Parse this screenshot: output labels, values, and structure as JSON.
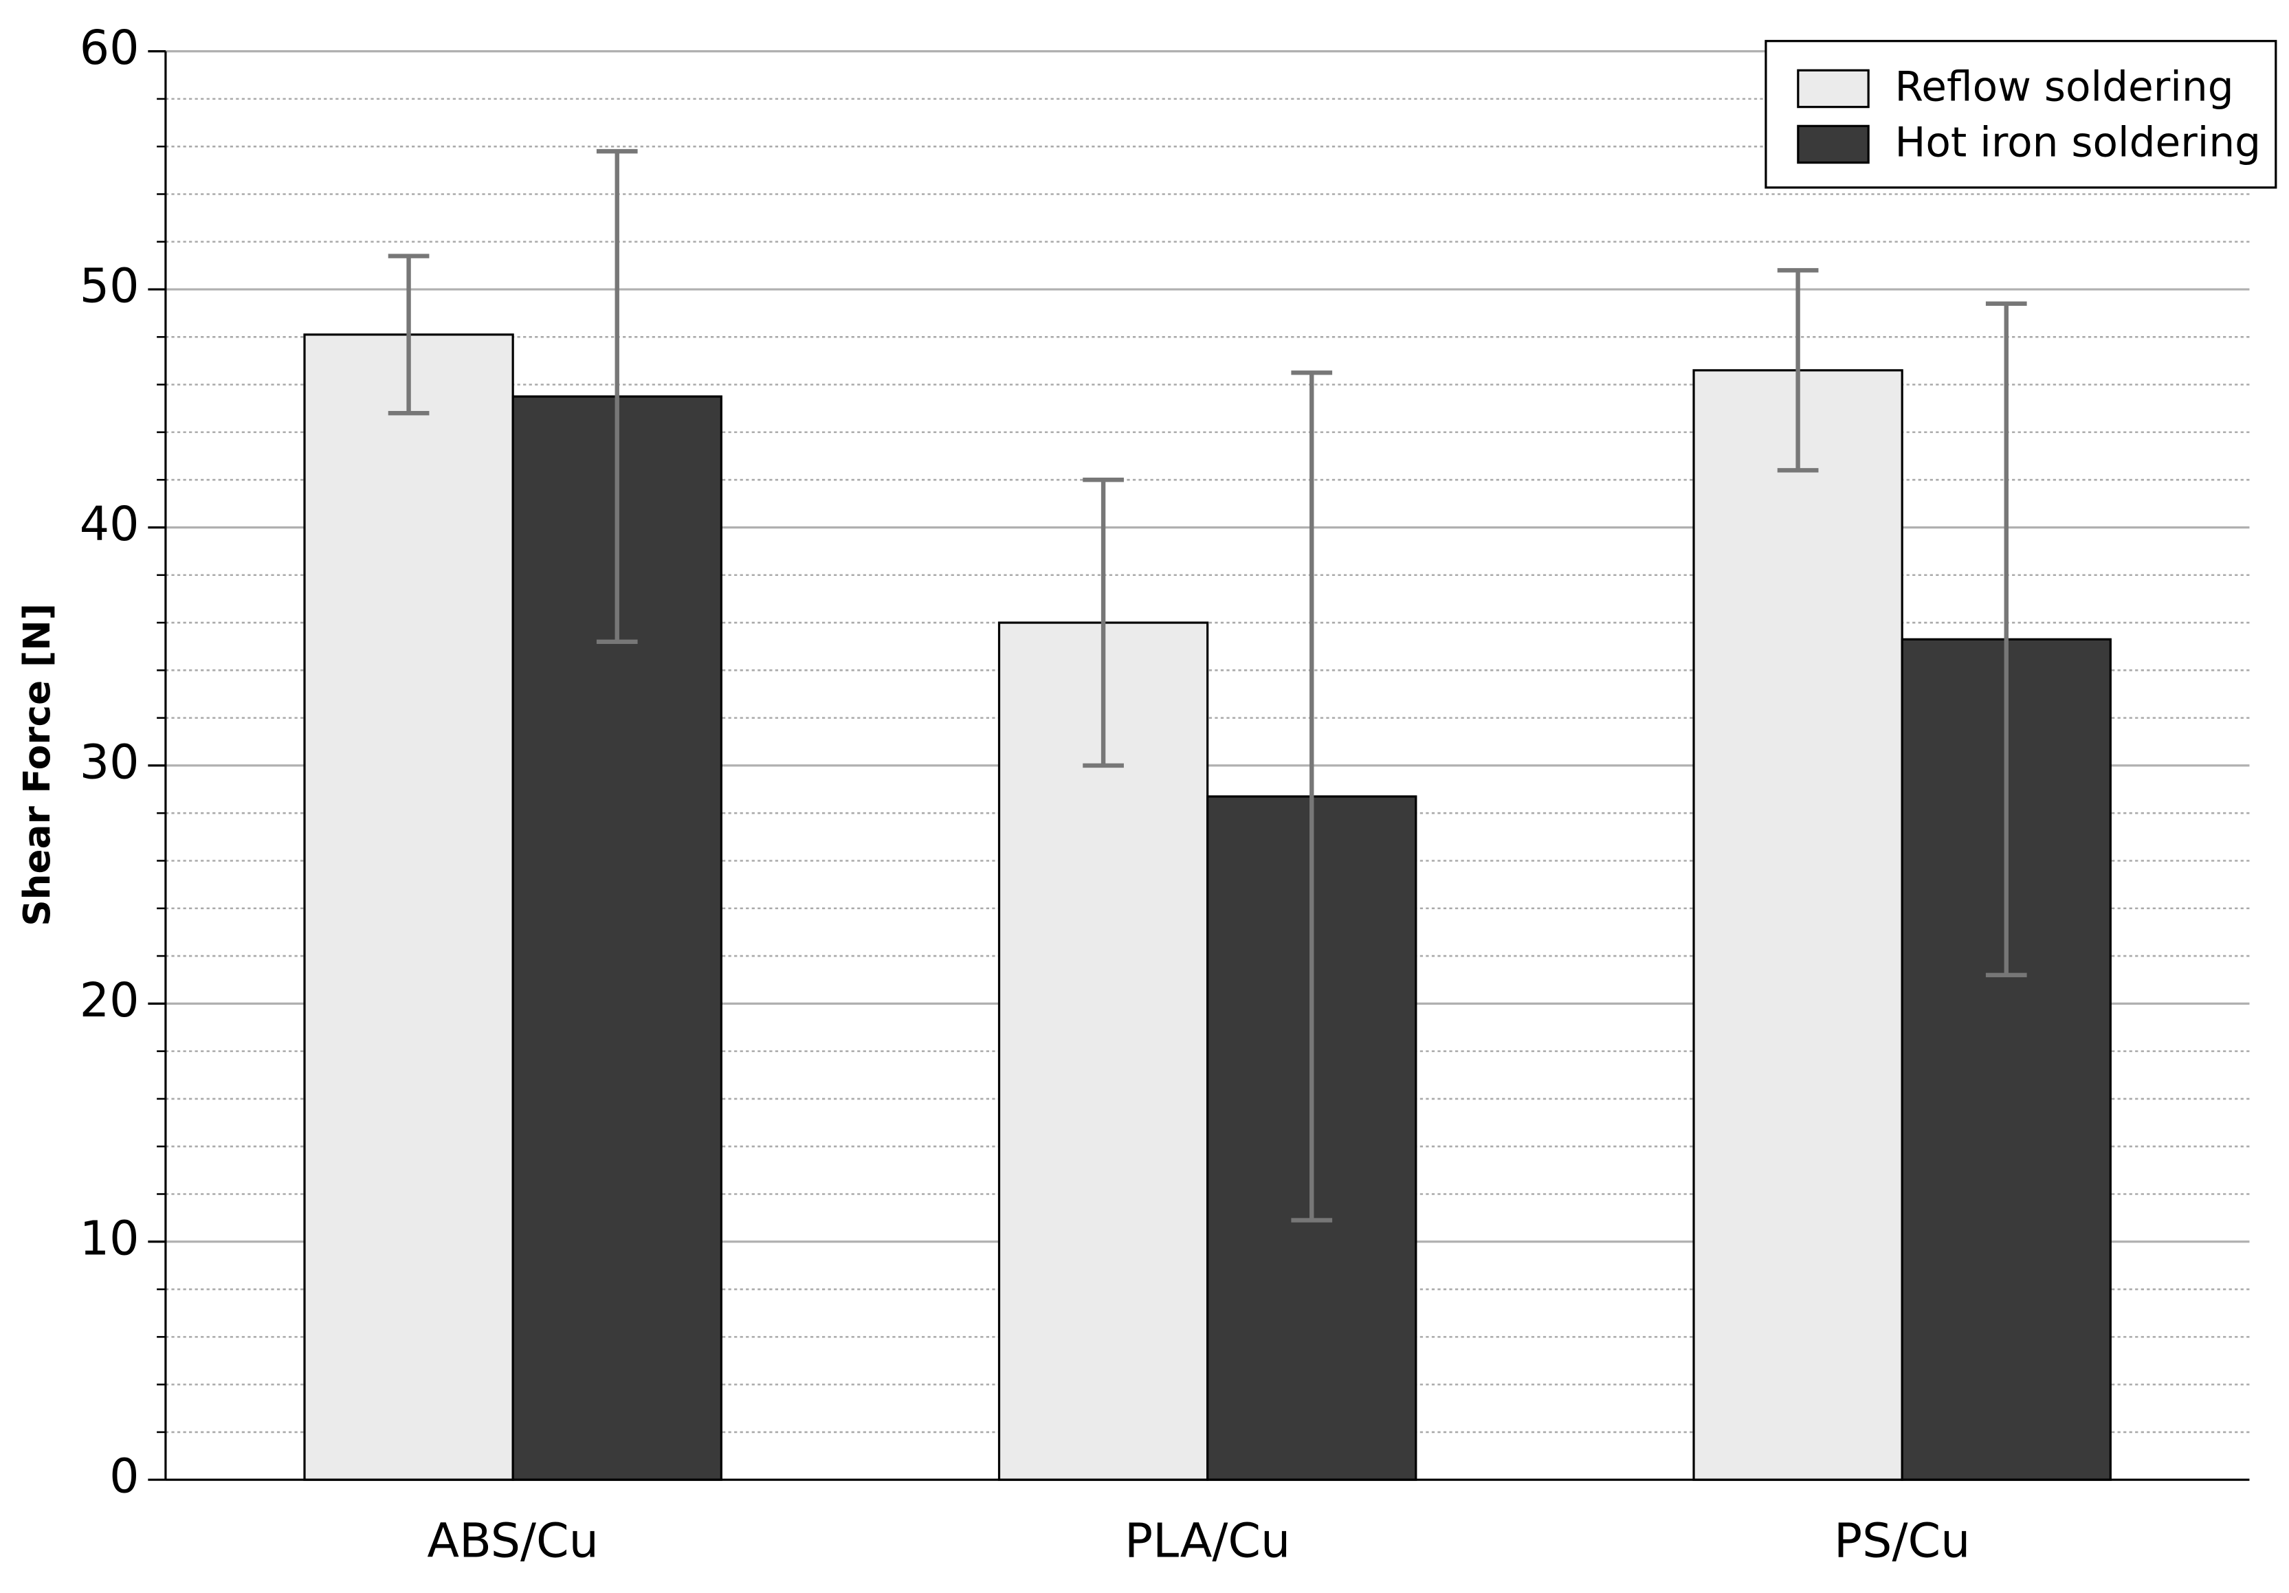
{
  "chart_data": {
    "type": "bar",
    "y_label": "Shear Force [N]",
    "categories": [
      "ABS/Cu",
      "PLA/Cu",
      "PS/Cu"
    ],
    "series": [
      {
        "name": "Reflow soldering",
        "color": "#ebebeb",
        "values": [
          48.1,
          36.0,
          46.6
        ],
        "errors": [
          3.3,
          6.0,
          4.2
        ]
      },
      {
        "name": "Hot iron soldering",
        "color": "#3a3a3a",
        "values": [
          45.5,
          28.7,
          35.3
        ],
        "errors": [
          10.3,
          17.8,
          14.1
        ]
      }
    ],
    "error_color": "#777777",
    "ylim": [
      0,
      60
    ],
    "yticks": [
      0,
      10,
      20,
      30,
      40,
      50,
      60
    ],
    "grid": true,
    "minor_grid_step": 2,
    "legend": "upper right"
  }
}
